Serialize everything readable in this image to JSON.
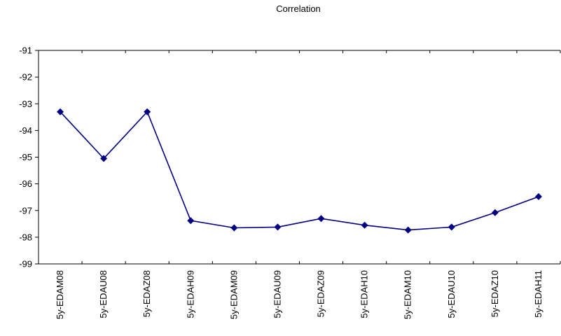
{
  "chart_data": {
    "type": "line",
    "title": "Correlation",
    "xlabel": "",
    "ylabel": "",
    "categories": [
      "5y-EDAM08",
      "5y-EDAU08",
      "5y-EDAZ08",
      "5y-EDAH09",
      "5y-EDAM09",
      "5y-EDAU09",
      "5y-EDAZ09",
      "5y-EDAH10",
      "5y-EDAM10",
      "5y-EDAU10",
      "5y-EDAZ10",
      "5y-EDAH11"
    ],
    "series": [
      {
        "values": [
          -93.3,
          -95.05,
          -93.3,
          -97.38,
          -97.65,
          -97.62,
          -97.3,
          -97.55,
          -97.73,
          -97.62,
          -97.08,
          -96.48
        ],
        "color": "#000080",
        "marker": "diamond"
      }
    ],
    "ylim": [
      -99,
      -91
    ],
    "yticks": [
      -91,
      -92,
      -93,
      -94,
      -95,
      -96,
      -97,
      -98,
      -99
    ],
    "grid": false,
    "legend": "none"
  }
}
